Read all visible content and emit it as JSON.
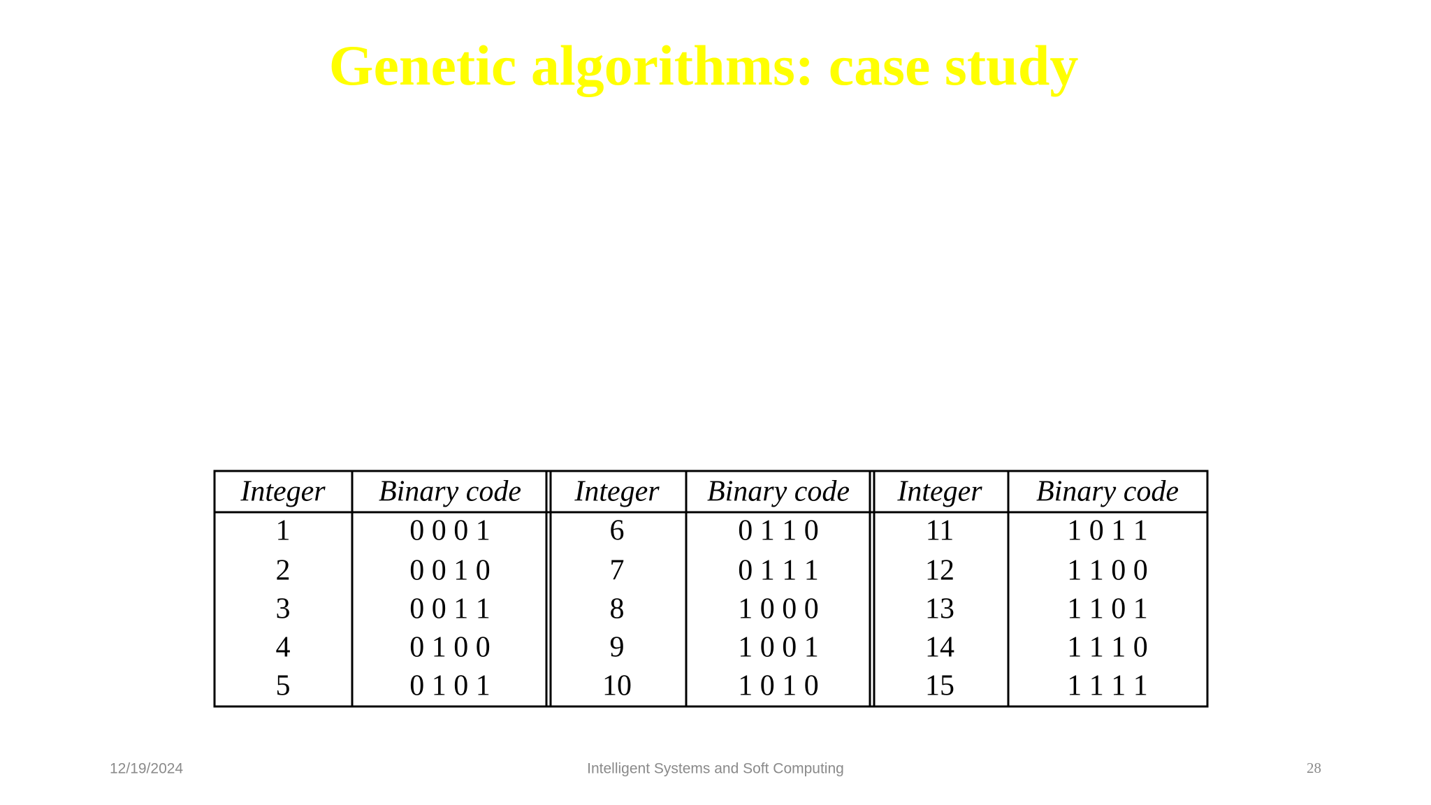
{
  "header": {
    "title": "Genetic algorithms: case study"
  },
  "table": {
    "headers": [
      "Integer",
      "Binary code",
      "Integer",
      "Binary code",
      "Integer",
      "Binary code"
    ],
    "rows": [
      [
        "1",
        "0 0 0 1",
        "6",
        "0 1 1 0",
        "11",
        "1 0 1 1"
      ],
      [
        "2",
        "0 0 1 0",
        "7",
        "0 1 1 1",
        "12",
        "1 1 0 0"
      ],
      [
        "3",
        "0 0 1 1",
        "8",
        "1 0 0 0",
        "13",
        "1 1 0 1"
      ],
      [
        "4",
        "0 1 0 0",
        "9",
        "1 0 0 1",
        "14",
        "1 1 1 0"
      ],
      [
        "5",
        "0 1 0 1",
        "10",
        "1 0 1 0",
        "15",
        "1 1 1 1"
      ]
    ]
  },
  "footer": {
    "date": "12/19/2024",
    "course": "Intelligent Systems and Soft Computing",
    "page": "28"
  }
}
